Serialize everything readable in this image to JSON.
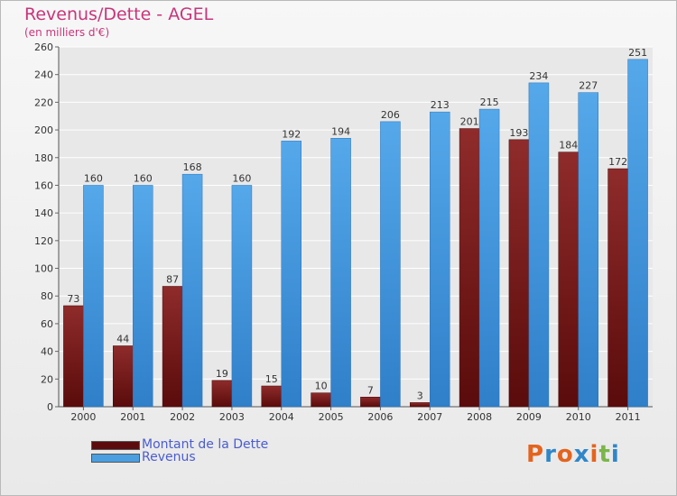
{
  "title": "Revenus/Dette - AGEL",
  "subtitle": "(en milliers d'€)",
  "logo": {
    "letters": [
      "P",
      "r",
      "o",
      "x",
      "i",
      "t",
      "i"
    ],
    "colors": [
      "#e3641e",
      "#2f86c9",
      "#e3641e",
      "#2f86c9",
      "#e3641e",
      "#7ab648",
      "#2f86c9"
    ]
  },
  "chart_data": {
    "type": "bar",
    "categories": [
      "2000",
      "2001",
      "2002",
      "2003",
      "2004",
      "2005",
      "2006",
      "2007",
      "2008",
      "2009",
      "2010",
      "2011"
    ],
    "series": [
      {
        "name": "Montant de la Dette",
        "values": [
          73,
          44,
          87,
          19,
          15,
          10,
          7,
          3,
          201,
          193,
          184,
          172
        ],
        "color": "#7a1b1b"
      },
      {
        "name": "Revenus",
        "values": [
          160,
          160,
          168,
          160,
          192,
          194,
          206,
          213,
          215,
          234,
          227,
          251
        ],
        "color": "#4b9fe1"
      }
    ],
    "ylim": [
      0,
      260
    ],
    "yticks": [
      0,
      20,
      40,
      60,
      80,
      100,
      120,
      140,
      160,
      180,
      200,
      220,
      240,
      260
    ],
    "grid": true,
    "legend": "bottom-left"
  }
}
